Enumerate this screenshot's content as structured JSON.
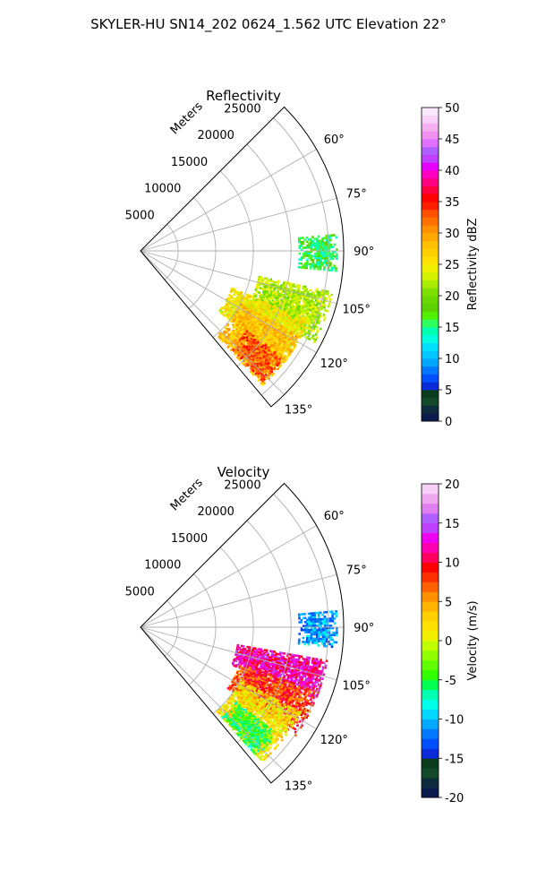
{
  "figure": {
    "title": "SKYLER-HU  SN14_202  0624_1.562 UTC Elevation 22°"
  },
  "chart_data": [
    {
      "type": "polar-sector",
      "title": "Reflectivity",
      "range_label": "Meters",
      "range_ticks": [
        5000,
        10000,
        15000,
        20000,
        25000
      ],
      "range_max": 27000,
      "azimuth_range_deg": [
        45,
        140
      ],
      "azimuth_ticks": [
        "60°",
        "75°",
        "90°",
        "105°",
        "120°",
        "135°"
      ],
      "grid": true,
      "colorbar": {
        "label": "Reflectivity dBZ",
        "min": 0,
        "max": 50,
        "ticks": [
          "0",
          "5",
          "10",
          "15",
          "20",
          "25",
          "30",
          "35",
          "40",
          "45",
          "50"
        ],
        "colors": [
          "#0a1a4d",
          "#0d2b3d",
          "#134a2a",
          "#0b3d1c",
          "#0a2cd8",
          "#0050ff",
          "#0078ff",
          "#00a8ff",
          "#00c8ff",
          "#00e0ff",
          "#00ffe0",
          "#00ffb0",
          "#30ff60",
          "#50f000",
          "#5cd000",
          "#6ad800",
          "#80e000",
          "#a8ec00",
          "#d4f200",
          "#f0f000",
          "#ffe000",
          "#ffd000",
          "#ffc000",
          "#ffa800",
          "#ff9000",
          "#ff7000",
          "#ff5000",
          "#ff2000",
          "#ff0000",
          "#ff0040",
          "#ff0080",
          "#ff00c0",
          "#e600ff",
          "#c040ff",
          "#b060ff",
          "#e070ff",
          "#f090f0",
          "#f4b0f0",
          "#f8d0f8",
          "#fce8fc"
        ]
      },
      "echo_regions": [
        {
          "az": [
            85,
            96
          ],
          "range": [
            21000,
            26000
          ],
          "value": 16
        },
        {
          "az": [
            102,
            118
          ],
          "range": [
            16000,
            26000
          ],
          "value": 22
        },
        {
          "az": [
            112,
            128
          ],
          "range": [
            13000,
            24000
          ],
          "value": 25
        },
        {
          "az": [
            118,
            138
          ],
          "range": [
            15000,
            24000
          ],
          "value": 28
        },
        {
          "az": [
            127,
            137
          ],
          "range": [
            17500,
            23500
          ],
          "value": 33
        }
      ]
    },
    {
      "type": "polar-sector",
      "title": "Velocity",
      "range_label": "Meters",
      "range_ticks": [
        5000,
        10000,
        15000,
        20000,
        25000
      ],
      "range_max": 27000,
      "azimuth_range_deg": [
        45,
        140
      ],
      "azimuth_ticks": [
        "60°",
        "75°",
        "90°",
        "105°",
        "120°",
        "135°"
      ],
      "grid": true,
      "colorbar": {
        "label": "Velocity (m/s)",
        "min": -20,
        "max": 20,
        "ticks": [
          "-20",
          "-15",
          "-10",
          "-5",
          "0",
          "5",
          "10",
          "15",
          "20"
        ],
        "colors": [
          "#0a1a4d",
          "#0d2b3d",
          "#134a2a",
          "#0b3d1c",
          "#0a2cd8",
          "#0050ff",
          "#0078ff",
          "#00a8ff",
          "#00d8ff",
          "#00ffe8",
          "#00ffb0",
          "#00ff50",
          "#30ff00",
          "#60ff00",
          "#90ff00",
          "#c0ff00",
          "#f0f000",
          "#ffe000",
          "#ffd000",
          "#ffb400",
          "#ff9000",
          "#ff6000",
          "#ff3000",
          "#ff0000",
          "#ff0060",
          "#ff00b0",
          "#f000f0",
          "#c040ff",
          "#b060ff",
          "#e080f0",
          "#f0a8f0",
          "#f8d0f8"
        ]
      },
      "echo_regions": [
        {
          "az": [
            85,
            96
          ],
          "range": [
            21000,
            26000
          ],
          "value": -11
        },
        {
          "az": [
            100,
            112
          ],
          "range": [
            13000,
            25000
          ],
          "value": 12
        },
        {
          "az": [
            110,
            125
          ],
          "range": [
            14000,
            25000
          ],
          "value": 8
        },
        {
          "az": [
            118,
            138
          ],
          "range": [
            15000,
            24000
          ],
          "value": 2
        },
        {
          "az": [
            128,
            138
          ],
          "range": [
            16000,
            23000
          ],
          "value": -5
        }
      ]
    }
  ]
}
